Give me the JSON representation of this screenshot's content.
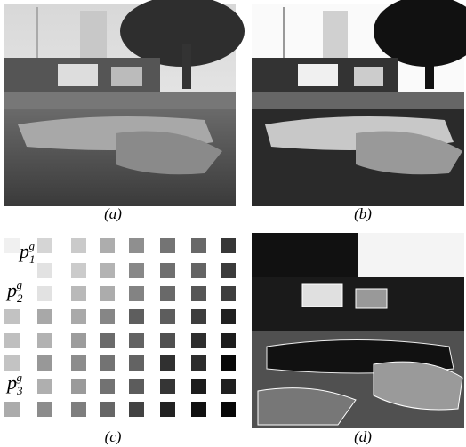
{
  "panels": [
    {
      "caption": "(a)"
    },
    {
      "caption": "(b)"
    },
    {
      "caption": "(c)"
    },
    {
      "caption": "(d)"
    }
  ],
  "patch_labels": [
    {
      "base": "p",
      "sub": "1",
      "sup": "g"
    },
    {
      "base": "p",
      "sub": "2",
      "sup": "g"
    },
    {
      "base": "p",
      "sub": "3",
      "sup": "g"
    }
  ]
}
